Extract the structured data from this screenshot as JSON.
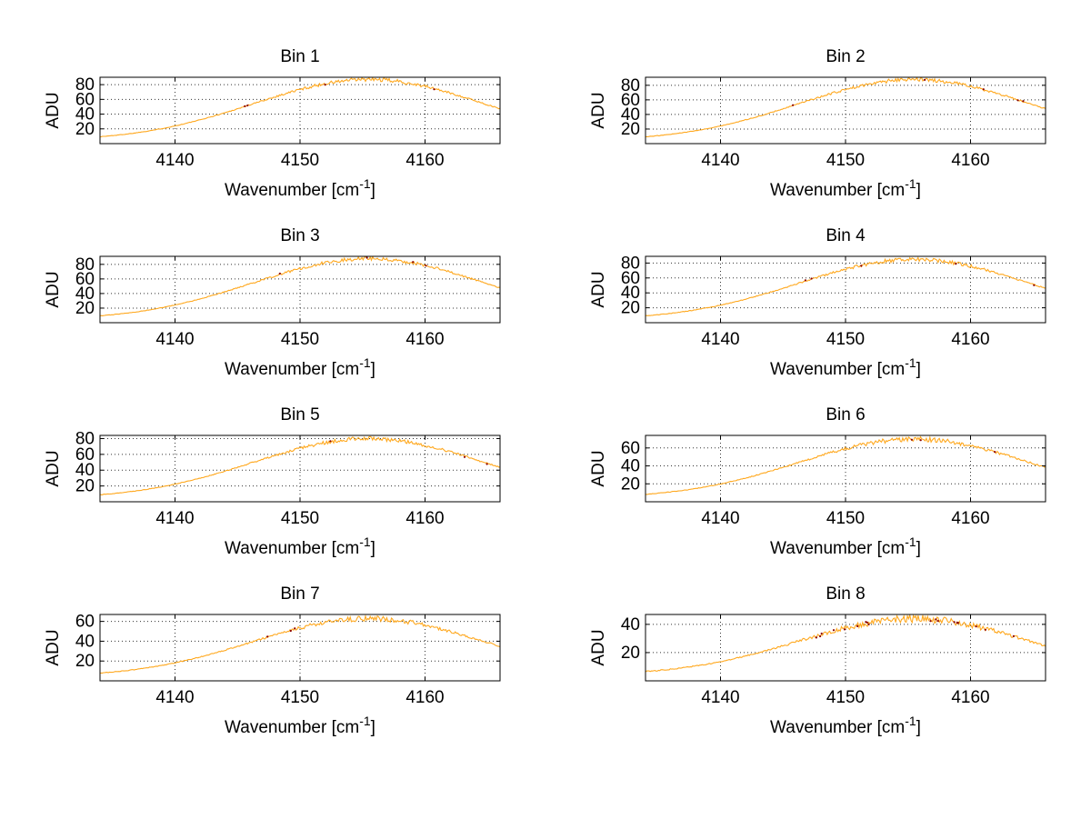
{
  "figure": {
    "background": "#FFFFFF"
  },
  "chart_data": {
    "type": "line",
    "xlabel_main": "Wavenumber [cm",
    "xlabel_sup": "-1",
    "xlabel_close": "]",
    "ylabel": "ADU",
    "x_ticks": [
      "4140",
      "4150",
      "4160"
    ],
    "x_tick_values": [
      4140,
      4150,
      4160
    ],
    "x_range": [
      4134,
      4166
    ],
    "grid": "dotted",
    "grid_color": "#333333",
    "line_color": "#FFA81E",
    "speckle_color": "#8B0000",
    "curve_model": {
      "center": 4155.5,
      "sigma": 13,
      "baseline": 4
    },
    "plots": [
      {
        "title": "Bin 1",
        "peak_adu": 87,
        "y_ticks": [
          20,
          40,
          60,
          80
        ],
        "y_range": [
          0,
          90
        ],
        "speckles": 4
      },
      {
        "title": "Bin 2",
        "peak_adu": 88,
        "y_ticks": [
          20,
          40,
          60,
          80
        ],
        "y_range": [
          0,
          91
        ],
        "speckles": 5
      },
      {
        "title": "Bin 3",
        "peak_adu": 88,
        "y_ticks": [
          20,
          40,
          60,
          80
        ],
        "y_range": [
          0,
          91
        ],
        "speckles": 4
      },
      {
        "title": "Bin 4",
        "peak_adu": 85,
        "y_ticks": [
          20,
          40,
          60,
          80
        ],
        "y_range": [
          0,
          89
        ],
        "speckles": 5
      },
      {
        "title": "Bin 5",
        "peak_adu": 80,
        "y_ticks": [
          20,
          40,
          60,
          80
        ],
        "y_range": [
          0,
          84
        ],
        "speckles": 3
      },
      {
        "title": "Bin 6",
        "peak_adu": 70,
        "y_ticks": [
          20,
          40,
          60
        ],
        "y_range": [
          0,
          74
        ],
        "speckles": 3
      },
      {
        "title": "Bin 7",
        "peak_adu": 63,
        "y_ticks": [
          20,
          40,
          60
        ],
        "y_range": [
          0,
          67
        ],
        "speckles": 3
      },
      {
        "title": "Bin 8",
        "peak_adu": 44,
        "y_ticks": [
          20,
          40
        ],
        "y_range": [
          0,
          47
        ],
        "speckles": 18
      }
    ]
  }
}
